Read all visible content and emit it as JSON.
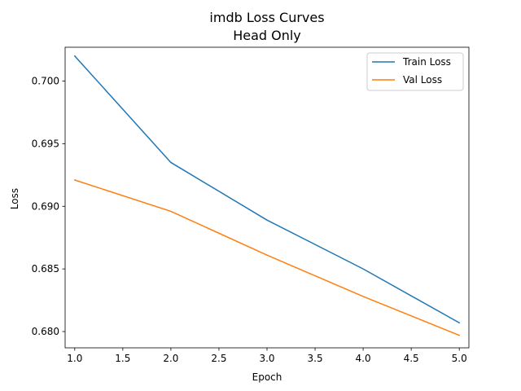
{
  "chart_data": {
    "type": "line",
    "title": "imdb Loss Curves",
    "subtitle": "Head Only",
    "xlabel": "Epoch",
    "ylabel": "Loss",
    "xlim": [
      0.9,
      5.1
    ],
    "ylim": [
      0.6787,
      0.7027
    ],
    "xticks": [
      1.0,
      1.5,
      2.0,
      2.5,
      3.0,
      3.5,
      4.0,
      4.5,
      5.0
    ],
    "xtick_labels": [
      "1.0",
      "1.5",
      "2.0",
      "2.5",
      "3.0",
      "3.5",
      "4.0",
      "4.5",
      "5.0"
    ],
    "yticks": [
      0.68,
      0.685,
      0.69,
      0.695,
      0.7
    ],
    "ytick_labels": [
      "0.680",
      "0.685",
      "0.690",
      "0.695",
      "0.700"
    ],
    "grid": false,
    "legend_position": "top-right",
    "x": [
      1,
      2,
      3,
      4,
      5
    ],
    "series": [
      {
        "name": "Train Loss",
        "color": "#1f77b4",
        "values": [
          0.702,
          0.6935,
          0.6889,
          0.685,
          0.6807
        ]
      },
      {
        "name": "Val Loss",
        "color": "#ff7f0e",
        "values": [
          0.6921,
          0.6896,
          0.6861,
          0.6828,
          0.6797
        ]
      }
    ]
  }
}
